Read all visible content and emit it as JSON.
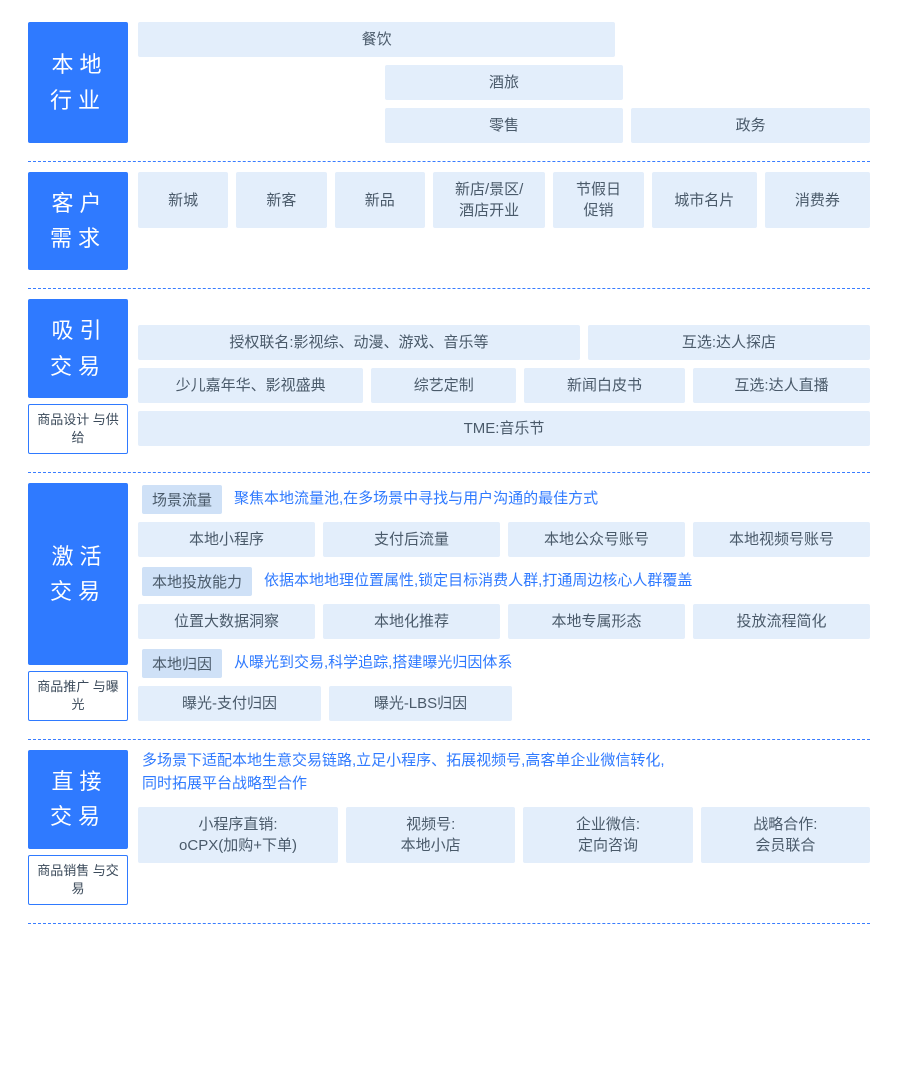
{
  "colors": {
    "accent": "#2f7aff",
    "cell_bg": "#e3eefb",
    "tag_bg": "#cfe1f7",
    "text": "#4a5a6a",
    "border_dashed": "#3a7dff"
  },
  "sections": {
    "local_industry": {
      "title": "本地\n行业",
      "rows": [
        {
          "type": "cells",
          "cells": [
            {
              "text": "餐饮",
              "flex": 2
            },
            {
              "text": "",
              "flex": 1,
              "spacer": true
            }
          ]
        },
        {
          "type": "cells",
          "cells": [
            {
              "text": "",
              "flex": 1,
              "spacer": true
            },
            {
              "text": "酒旅",
              "flex": 1
            },
            {
              "text": "",
              "flex": 1,
              "spacer": true
            }
          ]
        },
        {
          "type": "cells",
          "cells": [
            {
              "text": "",
              "flex": 1,
              "spacer": true
            },
            {
              "text": "零售",
              "flex": 1
            },
            {
              "text": "政务",
              "flex": 1
            }
          ]
        }
      ]
    },
    "customer_needs": {
      "title": "客户\n需求",
      "rows": [
        {
          "type": "cells",
          "cells": [
            {
              "text": "新城",
              "flex": 1
            },
            {
              "text": "新客",
              "flex": 1
            },
            {
              "text": "新品",
              "flex": 1
            },
            {
              "text": "新店/景区/\n酒店开业",
              "flex": 1.3
            },
            {
              "text": "节假日\n促销",
              "flex": 1
            },
            {
              "text": "城市名片",
              "flex": 1.2
            },
            {
              "text": "消费券",
              "flex": 1.2
            }
          ]
        }
      ]
    },
    "attract": {
      "title": "吸引\n交易",
      "sub": "商品设计\n与供给",
      "rows": [
        {
          "type": "cells",
          "cells": [
            {
              "text": "授权联名:影视综、动漫、游戏、音乐等",
              "flex": 1.6
            },
            {
              "text": "互选:达人探店",
              "flex": 1
            }
          ]
        },
        {
          "type": "cells",
          "cells": [
            {
              "text": "少儿嘉年华、影视盛典",
              "flex": 1.3
            },
            {
              "text": "综艺定制",
              "flex": 0.8
            },
            {
              "text": "新闻白皮书",
              "flex": 0.9
            },
            {
              "text": "互选:达人直播",
              "flex": 1
            }
          ]
        },
        {
          "type": "cells",
          "cells": [
            {
              "text": "TME:音乐节",
              "flex": 1
            }
          ]
        }
      ]
    },
    "activate": {
      "title": "激活\n交易",
      "sub": "商品推广\n与曝光",
      "rows": [
        {
          "type": "desc",
          "tag": "场景流量",
          "text": "聚焦本地流量池,在多场景中寻找与用户沟通的最佳方式"
        },
        {
          "type": "cells",
          "cells": [
            {
              "text": "本地小程序",
              "flex": 1
            },
            {
              "text": "支付后流量",
              "flex": 1
            },
            {
              "text": "本地公众号账号",
              "flex": 1
            },
            {
              "text": "本地视频号账号",
              "flex": 1
            }
          ]
        },
        {
          "type": "desc",
          "tag": "本地投放能力",
          "text": "依据本地地理位置属性,锁定目标消费人群,打通周边核心人群覆盖"
        },
        {
          "type": "cells",
          "cells": [
            {
              "text": "位置大数据洞察",
              "flex": 1
            },
            {
              "text": "本地化推荐",
              "flex": 1
            },
            {
              "text": "本地专属形态",
              "flex": 1
            },
            {
              "text": "投放流程简化",
              "flex": 1
            }
          ]
        },
        {
          "type": "desc",
          "tag": "本地归因",
          "text": "从曝光到交易,科学追踪,搭建曝光归因体系"
        },
        {
          "type": "cells",
          "cells": [
            {
              "text": "曝光-支付归因",
              "flex": 1
            },
            {
              "text": "曝光-LBS归因",
              "flex": 1
            },
            {
              "text": "",
              "flex": 2,
              "spacer": true
            }
          ]
        }
      ]
    },
    "direct": {
      "title": "直接\n交易",
      "sub": "商品销售\n与交易",
      "rows": [
        {
          "type": "desc_only",
          "text": "多场景下适配本地生意交易链路,立足小程序、拓展视频号,高客单企业微信转化,\n同时拓展平台战略型合作"
        },
        {
          "type": "cells",
          "cells": [
            {
              "text": "小程序直销:\noCPX(加购+下单)",
              "flex": 1.2
            },
            {
              "text": "视频号:\n本地小店",
              "flex": 1
            },
            {
              "text": "企业微信:\n定向咨询",
              "flex": 1
            },
            {
              "text": "战略合作:\n会员联合",
              "flex": 1
            }
          ]
        }
      ]
    }
  }
}
